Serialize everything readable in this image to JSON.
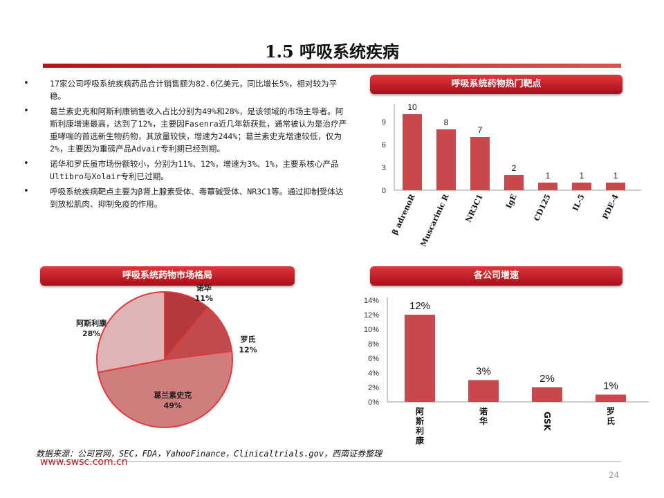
{
  "title": "1.5 呼吸系统疾病",
  "bullets": [
    "17家公司呼吸系统疾病药品合计销售额为82.6亿美元，同比增长5%，相对较为平稳。",
    "葛兰素史克和阿斯利康销售收入占比分别为49%和28%，是该领域的市场主导者。阿斯利康增速最高，达到了12%，主要因Fasenra近几年新获批，通常被认为是治疗严重哮喘的首选新生物药物，其放量较快，增速为244%；葛兰素史克增速较低，仅为2%，主要因为重磅产品Advair专利期已经到期。",
    "诺华和罗氏虽市场份额较小，分别为11%、12%，增速为3%、1%，主要系核心产品Ultibro与Xolair专利已过期。",
    "呼吸系统疾病靶点主要为β肾上腺素受体、毒蕈碱受体、NR3C1等。通过抑制受体达到放松肌肉、抑制免疫的作用。"
  ],
  "banners": {
    "targets": "呼吸系统药物热门靶点",
    "market": "呼吸系统药物市场格局",
    "growth": "各公司增速"
  },
  "colors": {
    "bar": "#c9484b",
    "accent": "#c0161f"
  },
  "chart_data": [
    {
      "type": "bar",
      "title": "呼吸系统药物热门靶点",
      "categories": [
        "β adrenoR",
        "Muscarinic R",
        "NR3C1",
        "IgE",
        "CD125",
        "IL-5",
        "PDE-4"
      ],
      "values": [
        10,
        8,
        7,
        2,
        1,
        1,
        1
      ],
      "yticks": [
        "0",
        "3",
        "6",
        "9"
      ],
      "ylim": [
        0,
        10
      ]
    },
    {
      "type": "pie",
      "title": "呼吸系统药物市场格局",
      "labels": [
        "诺华",
        "罗氏",
        "葛兰素史克",
        "阿斯利康"
      ],
      "values": [
        11,
        12,
        49,
        28
      ],
      "value_labels": [
        "11%",
        "12%",
        "49%",
        "28%"
      ],
      "colors": [
        "#b5383a",
        "#c24b4d",
        "#d07d7d",
        "#dfb4b4"
      ]
    },
    {
      "type": "bar",
      "title": "各公司增速",
      "categories": [
        "阿斯利康",
        "诺华",
        "GSK",
        "罗氏"
      ],
      "values": [
        12,
        3,
        2,
        1
      ],
      "value_labels": [
        "12%",
        "3%",
        "2%",
        "1%"
      ],
      "yticks": [
        "0%",
        "2%",
        "4%",
        "6%",
        "8%",
        "10%",
        "12%",
        "14%"
      ],
      "ylim": [
        0,
        14
      ]
    }
  ],
  "source": "数据来源：公司官网，SEC，FDA，YahooFinance，Clinicaltrials.gov，西南证券整理",
  "site": "www.swsc.com.cn",
  "page_number": "24"
}
